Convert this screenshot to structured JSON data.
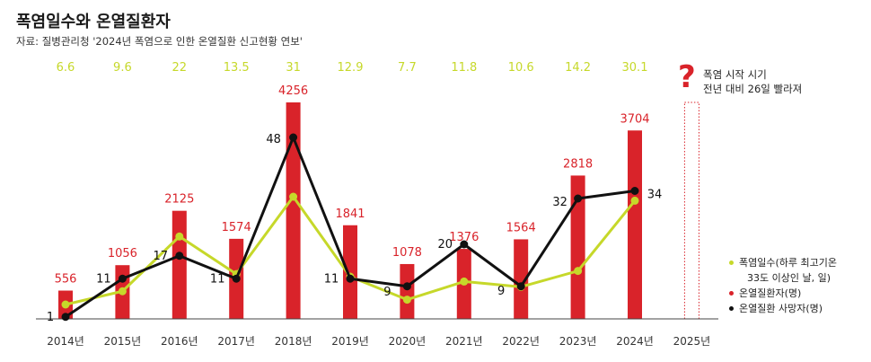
{
  "title": "폭염일수와 온열질환자",
  "source": "자료: 질병관리청 '2024년 폭염으로 인한 온열질환 신고현황 연보'",
  "colors": {
    "patients": "#d9232a",
    "heatwave": "#c6d82a",
    "deaths": "#111111",
    "axis": "#444444"
  },
  "note": {
    "mark": "?",
    "line1": "폭염 시작 시기",
    "line2": "전년 대비 26일 빨라져"
  },
  "legend": {
    "heatwave_line1": "폭염일수(하루 최고기온",
    "heatwave_line2": "33도 이상인 날, 일)",
    "patients": "온열질환자(명)",
    "deaths": "온열질환 사망자(명)"
  },
  "chart_data": {
    "type": "bar",
    "title": "폭염일수와 온열질환자",
    "categories": [
      "2014년",
      "2015년",
      "2016년",
      "2017년",
      "2018년",
      "2019년",
      "2020년",
      "2021년",
      "2022년",
      "2023년",
      "2024년",
      "2025년"
    ],
    "series": [
      {
        "name": "온열질환자(명)",
        "type": "bar",
        "values": [
          556,
          1056,
          2125,
          1574,
          4256,
          1841,
          1078,
          1376,
          1564,
          2818,
          3704,
          null
        ],
        "labels": [
          "556",
          "1056",
          "2125",
          "1574",
          "4256",
          "1841",
          "1078",
          "1376",
          "1564",
          "2818",
          "3704",
          ""
        ]
      },
      {
        "name": "폭염일수(하루 최고기온 33도 이상인 날, 일)",
        "type": "line",
        "values": [
          6.6,
          9.6,
          22,
          13.5,
          31,
          12.9,
          7.7,
          11.8,
          10.6,
          14.2,
          30.1,
          null
        ],
        "labels": [
          "6.6",
          "9.6",
          "22",
          "13.5",
          "31",
          "12.9",
          "7.7",
          "11.8",
          "10.6",
          "14.2",
          "30.1",
          ""
        ]
      },
      {
        "name": "온열질환 사망자(명)",
        "type": "line",
        "values": [
          1,
          11,
          17,
          11,
          48,
          11,
          9,
          20,
          9,
          32,
          34,
          null
        ],
        "labels": [
          "1",
          "11",
          "17",
          "11",
          "48",
          "11",
          "9",
          "20",
          "9",
          "32",
          "34",
          ""
        ]
      }
    ],
    "note": "2025년: 폭염 시작 시기 전년 대비 26일 빨라져"
  }
}
